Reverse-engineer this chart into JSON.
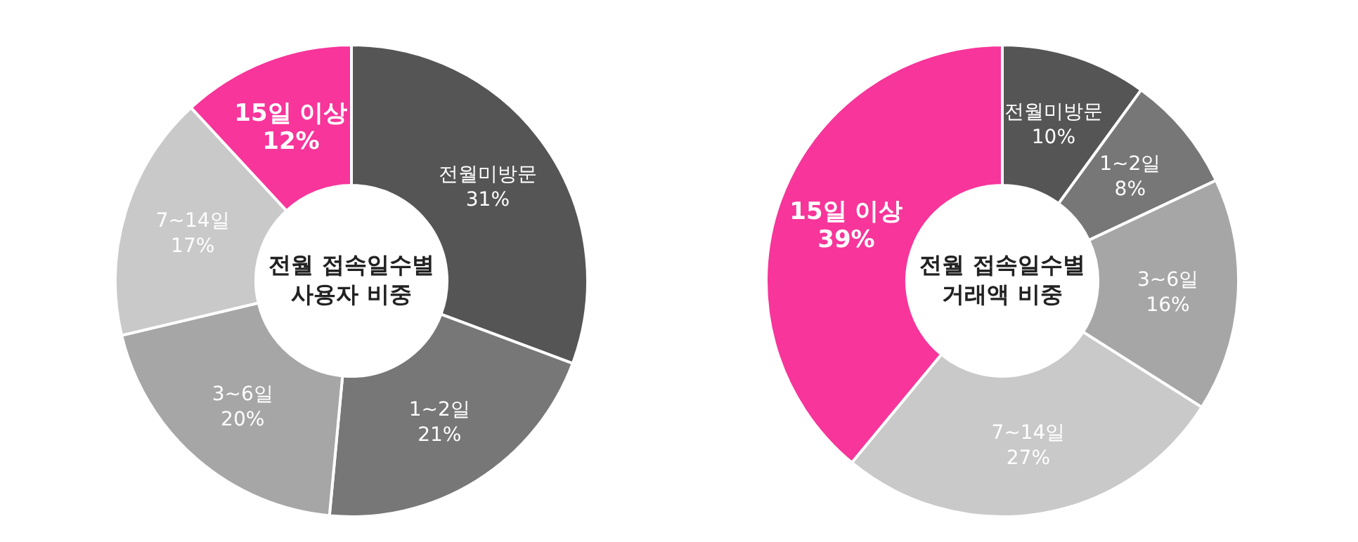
{
  "chart_data": [
    {
      "type": "donut",
      "title": "전월 접속일수별 사용자 비중",
      "categories": [
        "전월미방문",
        "1~2일",
        "3~6일",
        "7~14일",
        "15일 이상"
      ],
      "values": [
        31,
        21,
        20,
        17,
        12
      ],
      "value_labels": [
        "31%",
        "21%",
        "20%",
        "17%",
        "12%"
      ],
      "colors": [
        "#555555",
        "#777777",
        "#a6a6a6",
        "#c9c9c9",
        "#f7359a"
      ]
    },
    {
      "type": "donut",
      "title": "전월 접속일수별 거래액 비중",
      "categories": [
        "전월미방문",
        "1~2일",
        "3~6일",
        "7~14일",
        "15일 이상"
      ],
      "values": [
        10,
        8,
        16,
        27,
        39
      ],
      "value_labels": [
        "10%",
        "8%",
        "16%",
        "27%",
        "39%"
      ],
      "colors": [
        "#555555",
        "#777777",
        "#a6a6a6",
        "#c9c9c9",
        "#f7359a"
      ]
    }
  ]
}
